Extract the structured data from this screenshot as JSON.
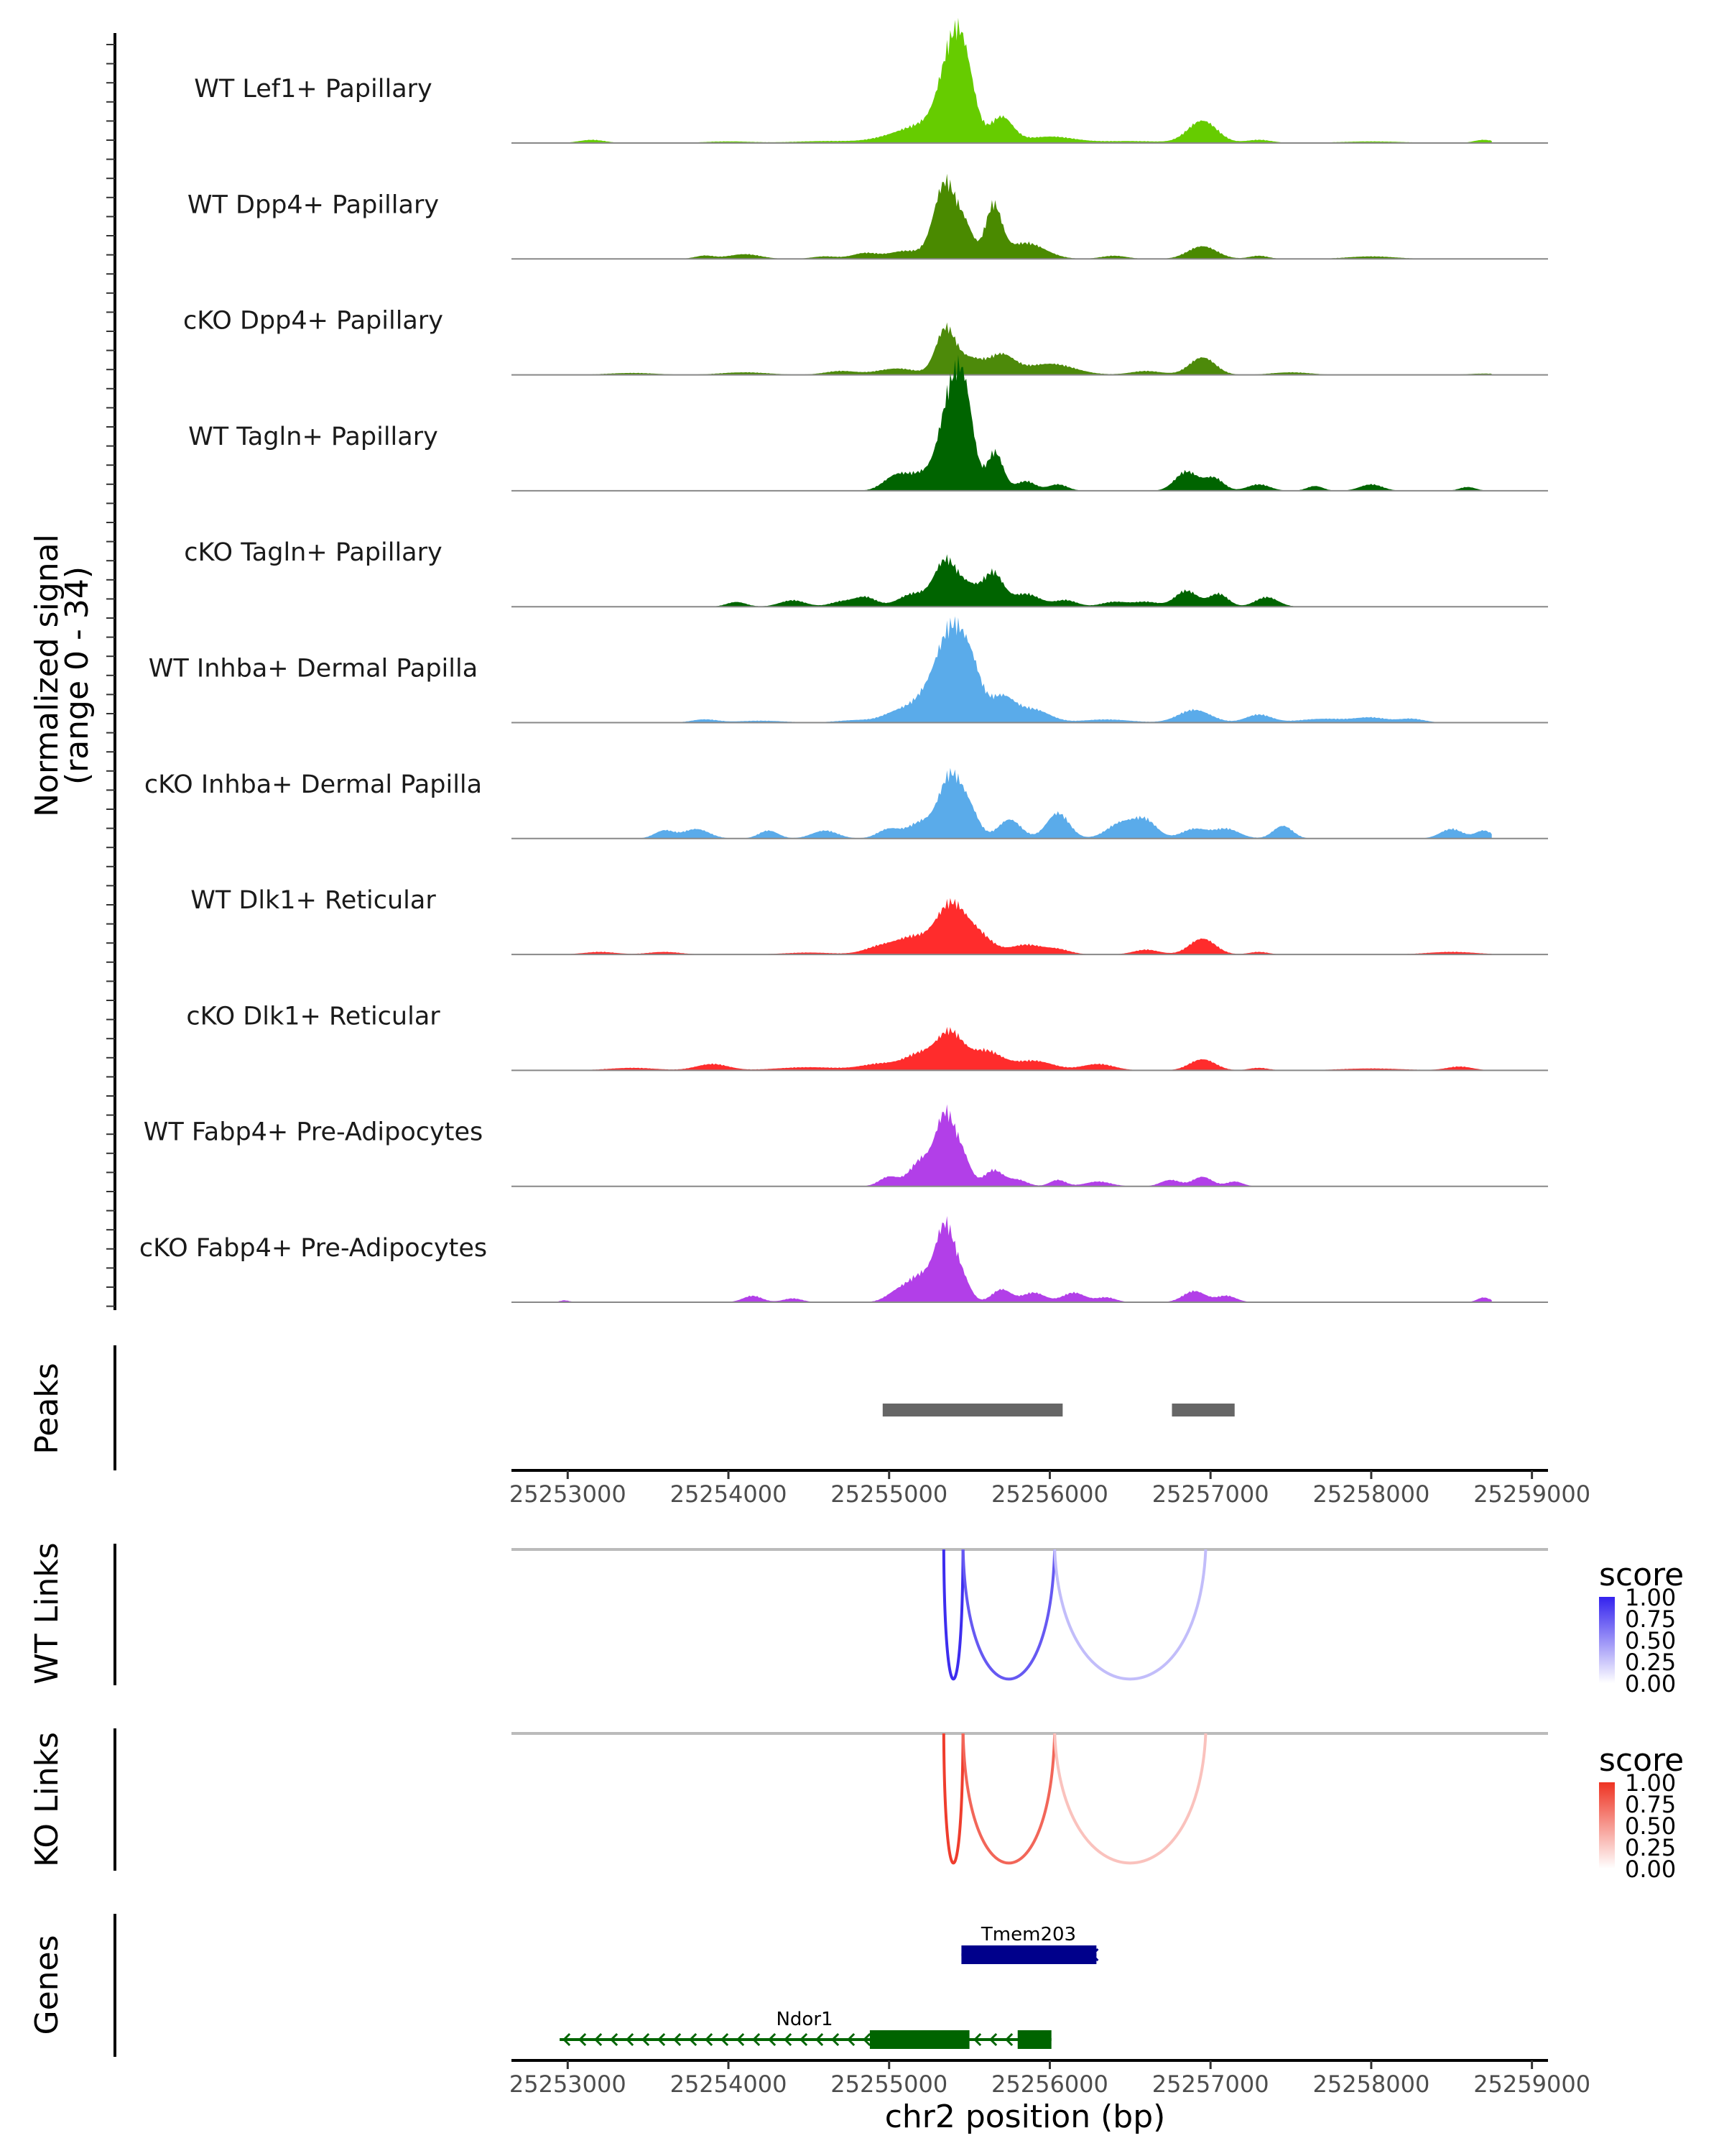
{
  "chart_data": {
    "type": "area",
    "region": {
      "chromosome": "chr2",
      "xlim": [
        25252650,
        25259100
      ],
      "xticks": [
        25253000,
        25254000,
        25255000,
        25256000,
        25257000,
        25258000,
        25259000
      ],
      "xtick_labels": [
        "25253000",
        "25254000",
        "25255000",
        "25256000",
        "25257000",
        "25258000",
        "25259000"
      ],
      "xlabel": "chr2 position (bp)"
    },
    "coverage": {
      "ylabel_line1": "Normalized signal",
      "ylabel_line2": "(range 0 - 34)",
      "ylim": [
        0,
        34
      ],
      "tracks": [
        {
          "name": "WT Lef1+ Papillary",
          "color": "#66cc00",
          "peaks": [
            [
              25253150,
              1.0,
              80
            ],
            [
              25254000,
              0.5,
              150
            ],
            [
              25254600,
              0.6,
              200
            ],
            [
              25255050,
              1.6,
              150
            ],
            [
              25255250,
              5.0,
              150
            ],
            [
              25255400,
              27.0,
              80
            ],
            [
              25255480,
              12.0,
              60
            ],
            [
              25255700,
              8.0,
              70
            ],
            [
              25256000,
              2.0,
              150
            ],
            [
              25256500,
              0.6,
              200
            ],
            [
              25256950,
              7.0,
              90
            ],
            [
              25257300,
              1.0,
              80
            ],
            [
              25258000,
              0.5,
              200
            ],
            [
              25258700,
              1.0,
              60
            ]
          ]
        },
        {
          "name": "WT Dpp4+ Papillary",
          "color": "#4a8a00",
          "peaks": [
            [
              25253850,
              1.0,
              60
            ],
            [
              25254100,
              1.5,
              100
            ],
            [
              25254600,
              0.8,
              80
            ],
            [
              25254850,
              1.8,
              80
            ],
            [
              25255100,
              2.5,
              100
            ],
            [
              25255350,
              24.0,
              70
            ],
            [
              25255480,
              8.0,
              50
            ],
            [
              25255650,
              16.0,
              50
            ],
            [
              25255850,
              5.0,
              120
            ],
            [
              25256400,
              1.0,
              80
            ],
            [
              25256950,
              4.0,
              90
            ],
            [
              25257300,
              1.0,
              60
            ],
            [
              25258000,
              0.8,
              150
            ]
          ]
        },
        {
          "name": "cKO Dpp4+ Papillary",
          "color": "#4d8a0a",
          "peaks": [
            [
              25253400,
              0.6,
              150
            ],
            [
              25254100,
              0.8,
              150
            ],
            [
              25254700,
              1.2,
              100
            ],
            [
              25255050,
              2.0,
              120
            ],
            [
              25255350,
              14.0,
              60
            ],
            [
              25255500,
              5.0,
              80
            ],
            [
              25255700,
              6.0,
              80
            ],
            [
              25256000,
              3.5,
              150
            ],
            [
              25256600,
              1.2,
              100
            ],
            [
              25256950,
              5.5,
              80
            ],
            [
              25257500,
              0.8,
              120
            ],
            [
              25258700,
              0.4,
              100
            ]
          ]
        },
        {
          "name": "WT Tagln+ Papillary",
          "color": "#006400",
          "peaks": [
            [
              25255050,
              5.0,
              80
            ],
            [
              25255200,
              4.0,
              70
            ],
            [
              25255400,
              33.0,
              80
            ],
            [
              25255480,
              14.0,
              50
            ],
            [
              25255660,
              12.0,
              50
            ],
            [
              25255850,
              3.0,
              60
            ],
            [
              25256050,
              2.0,
              60
            ],
            [
              25256850,
              6.0,
              70
            ],
            [
              25257020,
              4.0,
              60
            ],
            [
              25257300,
              2.0,
              70
            ],
            [
              25257650,
              1.5,
              50
            ],
            [
              25258000,
              2.0,
              70
            ],
            [
              25258600,
              1.2,
              50
            ]
          ]
        },
        {
          "name": "cKO Tagln+ Papillary",
          "color": "#006400",
          "peaks": [
            [
              25254050,
              1.5,
              60
            ],
            [
              25254400,
              2.0,
              80
            ],
            [
              25254700,
              1.5,
              70
            ],
            [
              25254850,
              3.0,
              70
            ],
            [
              25255150,
              4.0,
              90
            ],
            [
              25255350,
              14.0,
              70
            ],
            [
              25255500,
              6.0,
              70
            ],
            [
              25255650,
              10.0,
              60
            ],
            [
              25255850,
              4.0,
              90
            ],
            [
              25256100,
              2.0,
              70
            ],
            [
              25256400,
              1.5,
              80
            ],
            [
              25256600,
              1.5,
              80
            ],
            [
              25256850,
              5.0,
              70
            ],
            [
              25257050,
              4.0,
              60
            ],
            [
              25257350,
              3.0,
              70
            ]
          ]
        },
        {
          "name": "WT Inhba+ Dermal Papilla",
          "color": "#5aabea",
          "peaks": [
            [
              25253850,
              1.0,
              80
            ],
            [
              25254200,
              0.6,
              150
            ],
            [
              25254800,
              0.8,
              120
            ],
            [
              25255050,
              3.0,
              90
            ],
            [
              25255250,
              8.0,
              100
            ],
            [
              25255400,
              27.0,
              90
            ],
            [
              25255520,
              10.0,
              60
            ],
            [
              25255700,
              8.0,
              80
            ],
            [
              25255900,
              4.0,
              100
            ],
            [
              25256350,
              1.0,
              150
            ],
            [
              25256900,
              4.0,
              100
            ],
            [
              25257300,
              2.5,
              80
            ],
            [
              25257700,
              1.2,
              150
            ],
            [
              25258000,
              1.5,
              100
            ],
            [
              25258250,
              1.2,
              80
            ]
          ]
        },
        {
          "name": "cKO Inhba+ Dermal Papilla",
          "color": "#5aabea",
          "peaks": [
            [
              25253600,
              2.5,
              60
            ],
            [
              25253800,
              3.0,
              80
            ],
            [
              25254250,
              2.5,
              60
            ],
            [
              25254600,
              2.5,
              80
            ],
            [
              25255000,
              3.0,
              70
            ],
            [
              25255200,
              5.0,
              80
            ],
            [
              25255380,
              19.0,
              70
            ],
            [
              25255500,
              8.0,
              60
            ],
            [
              25255750,
              6.0,
              70
            ],
            [
              25256050,
              8.0,
              70
            ],
            [
              25256450,
              5.0,
              90
            ],
            [
              25256600,
              5.0,
              70
            ],
            [
              25256900,
              3.0,
              80
            ],
            [
              25257100,
              3.0,
              80
            ],
            [
              25257450,
              4.0,
              60
            ],
            [
              25258500,
              3.0,
              70
            ],
            [
              25258700,
              2.5,
              50
            ]
          ]
        },
        {
          "name": "WT Dlk1+ Reticular",
          "color": "#ff2c2c",
          "peaks": [
            [
              25253200,
              0.8,
              100
            ],
            [
              25253600,
              0.8,
              100
            ],
            [
              25254500,
              0.6,
              150
            ],
            [
              25254950,
              2.5,
              100
            ],
            [
              25255150,
              5.0,
              100
            ],
            [
              25255380,
              15.0,
              90
            ],
            [
              25255550,
              6.0,
              90
            ],
            [
              25255850,
              3.0,
              100
            ],
            [
              25256050,
              1.5,
              80
            ],
            [
              25256600,
              1.5,
              80
            ],
            [
              25256950,
              5.0,
              80
            ],
            [
              25257300,
              0.8,
              60
            ],
            [
              25258500,
              0.8,
              150
            ]
          ]
        },
        {
          "name": "cKO Dlk1+ Reticular",
          "color": "#ff2c2c",
          "peaks": [
            [
              25253400,
              0.8,
              150
            ],
            [
              25253900,
              2.0,
              100
            ],
            [
              25254500,
              1.0,
              200
            ],
            [
              25254950,
              2.0,
              120
            ],
            [
              25255200,
              5.0,
              100
            ],
            [
              25255380,
              11.0,
              80
            ],
            [
              25255600,
              6.0,
              100
            ],
            [
              25255900,
              3.0,
              120
            ],
            [
              25256300,
              2.0,
              100
            ],
            [
              25256950,
              3.5,
              80
            ],
            [
              25257300,
              0.8,
              60
            ],
            [
              25258000,
              0.6,
              200
            ],
            [
              25258550,
              1.2,
              80
            ]
          ]
        },
        {
          "name": "WT Fabp4+ Pre-Adipocytes",
          "color": "#b23fe8",
          "peaks": [
            [
              25255000,
              3.0,
              60
            ],
            [
              25255200,
              8.0,
              70
            ],
            [
              25255350,
              22.0,
              60
            ],
            [
              25255460,
              8.0,
              50
            ],
            [
              25255650,
              5.0,
              60
            ],
            [
              25255800,
              2.0,
              60
            ],
            [
              25256050,
              2.0,
              50
            ],
            [
              25256300,
              1.5,
              80
            ],
            [
              25256750,
              2.0,
              60
            ],
            [
              25256950,
              3.0,
              60
            ],
            [
              25257150,
              1.5,
              50
            ]
          ]
        },
        {
          "name": "cKO Fabp4+ Pre-Adipocytes",
          "color": "#b23fe8",
          "peaks": [
            [
              25252980,
              0.6,
              30
            ],
            [
              25254150,
              2.0,
              60
            ],
            [
              25254400,
              1.2,
              60
            ],
            [
              25255050,
              3.0,
              70
            ],
            [
              25255200,
              8.0,
              80
            ],
            [
              25255350,
              23.0,
              60
            ],
            [
              25255460,
              6.0,
              50
            ],
            [
              25255700,
              4.0,
              60
            ],
            [
              25255900,
              3.0,
              70
            ],
            [
              25256150,
              3.0,
              70
            ],
            [
              25256350,
              1.5,
              60
            ],
            [
              25256900,
              3.5,
              70
            ],
            [
              25257100,
              2.0,
              60
            ],
            [
              25258700,
              1.5,
              40
            ]
          ]
        }
      ]
    },
    "peaks_track": {
      "label": "Peaks",
      "color": "#666666",
      "intervals": [
        [
          25254960,
          25256080
        ],
        [
          25256760,
          25257150
        ]
      ]
    },
    "links": [
      {
        "label": "WT Links",
        "legend_title": "score",
        "legend_breaks": [
          "1.00",
          "0.75",
          "0.50",
          "0.25",
          "0.00"
        ],
        "high_color": "#3322ee",
        "low_color": "#ffffff",
        "arcs": [
          {
            "start": 25255340,
            "end": 25255460,
            "score": 0.95
          },
          {
            "start": 25255460,
            "end": 25256030,
            "score": 0.75
          },
          {
            "start": 25256030,
            "end": 25256970,
            "score": 0.3
          }
        ]
      },
      {
        "label": "KO Links",
        "legend_title": "score",
        "legend_breaks": [
          "1.00",
          "0.75",
          "0.50",
          "0.25",
          "0.00"
        ],
        "high_color": "#ee3322",
        "low_color": "#ffffff",
        "arcs": [
          {
            "start": 25255340,
            "end": 25255460,
            "score": 0.95
          },
          {
            "start": 25255460,
            "end": 25256030,
            "score": 0.75
          },
          {
            "start": 25256030,
            "end": 25256970,
            "score": 0.3
          }
        ]
      }
    ],
    "genes": {
      "label": "Genes",
      "items": [
        {
          "name": "Tmem203",
          "color": "#00008b",
          "strand": "-",
          "start": 25255450,
          "end": 25256290,
          "exons": [
            [
              25255450,
              25256290
            ]
          ]
        },
        {
          "name": "Ndor1",
          "color": "#006400",
          "strand": "-",
          "start": 25252950,
          "end": 25256010,
          "exons": [
            [
              25254880,
              25255500
            ],
            [
              25255800,
              25256010
            ]
          ]
        }
      ]
    }
  }
}
